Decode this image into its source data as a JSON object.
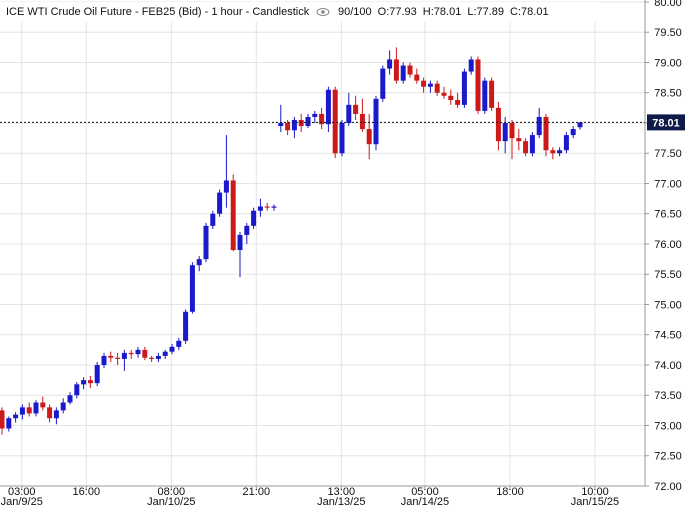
{
  "chart_data": {
    "type": "candlestick",
    "title": "ICE WTI Crude Oil Future - FEB25 (Bid) - 1 hour - Candlestick",
    "count_label": "90/100",
    "ohlc_labels": [
      "O:77.93",
      "H:78.01",
      "L:77.89",
      "C:78.01"
    ],
    "up_color": "#1a1acc",
    "down_color": "#cc1a1a",
    "open": [
      73.25,
      72.95,
      73.12,
      73.18,
      73.3,
      73.2,
      73.38,
      73.3,
      73.12,
      73.25,
      73.38,
      73.5,
      73.68,
      73.75,
      73.7,
      74.0,
      74.15,
      74.12,
      74.1,
      74.2,
      74.18,
      74.25,
      74.12,
      74.1,
      74.15,
      74.22,
      74.3,
      74.4,
      74.88,
      75.65,
      75.75,
      76.3,
      76.5,
      76.85,
      77.05,
      75.9,
      76.15,
      76.3,
      76.55,
      76.62,
      76.6,
      77.95,
      78.0,
      77.88,
      78.05,
      77.95,
      78.1,
      78.15,
      77.98,
      78.55,
      77.5,
      78.0,
      78.3,
      78.15,
      77.9,
      77.65,
      78.4,
      78.9,
      79.05,
      78.7,
      78.95,
      78.8,
      78.7,
      78.6,
      78.65,
      78.5,
      78.45,
      78.38,
      78.3,
      78.85,
      79.05,
      78.2,
      78.7,
      78.25,
      77.7,
      78.0,
      77.75,
      77.7,
      77.5,
      77.8,
      78.1,
      77.55,
      77.5,
      77.55,
      77.8,
      77.93
    ],
    "high": [
      73.3,
      73.15,
      73.22,
      73.35,
      73.38,
      73.42,
      73.48,
      73.35,
      73.3,
      73.45,
      73.55,
      73.72,
      73.8,
      73.82,
      74.05,
      74.2,
      74.22,
      74.2,
      74.25,
      74.25,
      74.3,
      74.3,
      74.15,
      74.2,
      74.25,
      74.35,
      74.45,
      74.92,
      75.7,
      75.8,
      76.35,
      76.55,
      76.9,
      77.8,
      77.15,
      76.2,
      76.35,
      76.6,
      76.75,
      76.68,
      76.65,
      78.3,
      78.05,
      78.1,
      78.15,
      78.15,
      78.2,
      78.25,
      78.6,
      78.6,
      78.05,
      78.5,
      78.45,
      78.4,
      78.15,
      78.45,
      78.95,
      79.2,
      79.25,
      79.0,
      79.0,
      78.9,
      78.75,
      78.7,
      78.7,
      78.6,
      78.55,
      78.5,
      78.9,
      79.1,
      79.1,
      78.75,
      78.75,
      78.35,
      78.1,
      78.05,
      77.9,
      77.75,
      77.85,
      78.25,
      78.15,
      77.6,
      77.6,
      77.85,
      77.95,
      78.01
    ],
    "low": [
      72.85,
      72.9,
      73.05,
      73.1,
      73.15,
      73.15,
      73.25,
      73.05,
      73.02,
      73.2,
      73.35,
      73.45,
      73.6,
      73.62,
      73.65,
      73.95,
      74.05,
      74.0,
      73.9,
      74.1,
      74.12,
      74.08,
      74.05,
      74.05,
      74.1,
      74.18,
      74.25,
      74.35,
      74.85,
      75.55,
      75.7,
      76.25,
      76.45,
      76.6,
      75.88,
      75.45,
      76.0,
      76.25,
      76.45,
      76.55,
      76.55,
      77.85,
      77.8,
      77.75,
      77.85,
      77.92,
      78.0,
      77.9,
      77.85,
      77.42,
      77.45,
      77.95,
      78.05,
      77.85,
      77.4,
      77.55,
      78.35,
      78.8,
      78.65,
      78.65,
      78.75,
      78.65,
      78.5,
      78.5,
      78.45,
      78.4,
      78.3,
      78.25,
      78.25,
      78.8,
      78.15,
      78.15,
      78.2,
      77.55,
      77.5,
      77.4,
      77.55,
      77.45,
      77.45,
      77.75,
      77.45,
      77.4,
      77.45,
      77.5,
      77.75,
      77.89
    ],
    "close": [
      72.95,
      73.12,
      73.18,
      73.3,
      73.2,
      73.38,
      73.3,
      73.12,
      73.25,
      73.38,
      73.5,
      73.68,
      73.75,
      73.7,
      74.0,
      74.15,
      74.12,
      74.1,
      74.2,
      74.18,
      74.25,
      74.12,
      74.1,
      74.15,
      74.22,
      74.3,
      74.4,
      74.88,
      75.65,
      75.75,
      76.3,
      76.5,
      76.85,
      77.05,
      75.9,
      76.15,
      76.3,
      76.55,
      76.62,
      76.6,
      76.62,
      78.0,
      77.88,
      78.05,
      77.95,
      78.1,
      78.15,
      77.98,
      78.55,
      77.5,
      78.0,
      78.3,
      78.15,
      77.9,
      77.65,
      78.4,
      78.9,
      79.05,
      78.7,
      78.95,
      78.8,
      78.7,
      78.6,
      78.65,
      78.5,
      78.45,
      78.38,
      78.3,
      78.85,
      79.05,
      78.2,
      78.7,
      78.25,
      77.7,
      78.0,
      77.75,
      77.7,
      77.5,
      77.8,
      78.1,
      77.55,
      77.5,
      77.55,
      77.8,
      77.9,
      78.01
    ],
    "last_price": 78.01,
    "ylim": [
      72,
      80
    ],
    "yticks": [
      {
        "value": 72,
        "label": "72.00"
      },
      {
        "value": 72.5,
        "label": "72.50"
      },
      {
        "value": 73,
        "label": "73.00"
      },
      {
        "value": 73.5,
        "label": "73.50"
      },
      {
        "value": 74,
        "label": "74.00"
      },
      {
        "value": 74.5,
        "label": "74.50"
      },
      {
        "value": 75,
        "label": "75.00"
      },
      {
        "value": 75.5,
        "label": "75.50"
      },
      {
        "value": 76,
        "label": "76.00"
      },
      {
        "value": 76.5,
        "label": "76.50"
      },
      {
        "value": 77,
        "label": "77.00"
      },
      {
        "value": 77.5,
        "label": "77.50"
      },
      {
        "value": 78,
        "label": "78.00"
      },
      {
        "value": 78.5,
        "label": "78.50"
      },
      {
        "value": 79,
        "label": "79.00"
      },
      {
        "value": 79.5,
        "label": "79.50"
      },
      {
        "value": 80,
        "label": "80.00"
      }
    ],
    "xticks": [
      {
        "value": 2.9,
        "label": "03:00",
        "date": "Jan/9/25"
      },
      {
        "value": 12.4,
        "label": "16:00"
      },
      {
        "value": 24.9,
        "label": "08:00",
        "date": "Jan/10/25"
      },
      {
        "value": 37.4,
        "label": "21:00"
      },
      {
        "value": 49.9,
        "label": "13:00",
        "date": "Jan/13/25"
      },
      {
        "value": 62.2,
        "label": "05:00",
        "date": "Jan/14/25"
      },
      {
        "value": 74.7,
        "label": "18:00"
      },
      {
        "value": 87.2,
        "label": "10:00",
        "date": "Jan/15/25"
      }
    ],
    "grid": true
  }
}
